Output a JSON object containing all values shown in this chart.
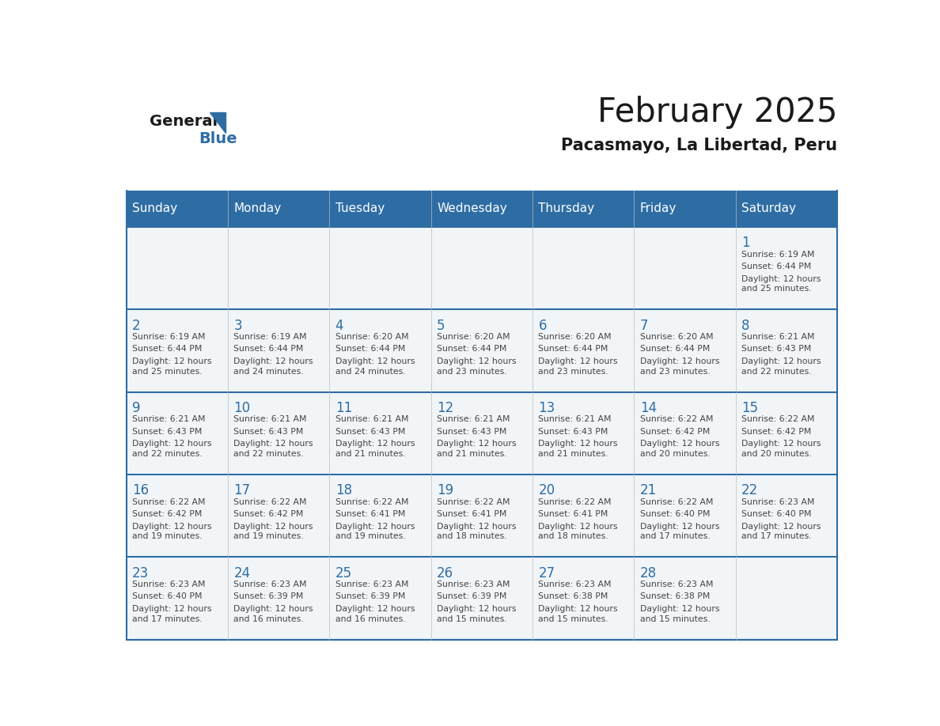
{
  "title": "February 2025",
  "subtitle": "Pacasmayo, La Libertad, Peru",
  "header_bg": "#2E6DA4",
  "header_text": "#FFFFFF",
  "row_line_color": "#2E6DA4",
  "text_color": "#444444",
  "day_number_color": "#2E6DA4",
  "days_of_week": [
    "Sunday",
    "Monday",
    "Tuesday",
    "Wednesday",
    "Thursday",
    "Friday",
    "Saturday"
  ],
  "logo_general_color": "#1a1a1a",
  "logo_blue_color": "#2E6DA4",
  "calendar_data": [
    [
      null,
      null,
      null,
      null,
      null,
      null,
      {
        "day": 1,
        "sunrise": "6:19 AM",
        "sunset": "6:44 PM",
        "daylight_suffix": "25 minutes."
      }
    ],
    [
      {
        "day": 2,
        "sunrise": "6:19 AM",
        "sunset": "6:44 PM",
        "daylight_suffix": "25 minutes."
      },
      {
        "day": 3,
        "sunrise": "6:19 AM",
        "sunset": "6:44 PM",
        "daylight_suffix": "24 minutes."
      },
      {
        "day": 4,
        "sunrise": "6:20 AM",
        "sunset": "6:44 PM",
        "daylight_suffix": "24 minutes."
      },
      {
        "day": 5,
        "sunrise": "6:20 AM",
        "sunset": "6:44 PM",
        "daylight_suffix": "23 minutes."
      },
      {
        "day": 6,
        "sunrise": "6:20 AM",
        "sunset": "6:44 PM",
        "daylight_suffix": "23 minutes."
      },
      {
        "day": 7,
        "sunrise": "6:20 AM",
        "sunset": "6:44 PM",
        "daylight_suffix": "23 minutes."
      },
      {
        "day": 8,
        "sunrise": "6:21 AM",
        "sunset": "6:43 PM",
        "daylight_suffix": "22 minutes."
      }
    ],
    [
      {
        "day": 9,
        "sunrise": "6:21 AM",
        "sunset": "6:43 PM",
        "daylight_suffix": "22 minutes."
      },
      {
        "day": 10,
        "sunrise": "6:21 AM",
        "sunset": "6:43 PM",
        "daylight_suffix": "22 minutes."
      },
      {
        "day": 11,
        "sunrise": "6:21 AM",
        "sunset": "6:43 PM",
        "daylight_suffix": "21 minutes."
      },
      {
        "day": 12,
        "sunrise": "6:21 AM",
        "sunset": "6:43 PM",
        "daylight_suffix": "21 minutes."
      },
      {
        "day": 13,
        "sunrise": "6:21 AM",
        "sunset": "6:43 PM",
        "daylight_suffix": "21 minutes."
      },
      {
        "day": 14,
        "sunrise": "6:22 AM",
        "sunset": "6:42 PM",
        "daylight_suffix": "20 minutes."
      },
      {
        "day": 15,
        "sunrise": "6:22 AM",
        "sunset": "6:42 PM",
        "daylight_suffix": "20 minutes."
      }
    ],
    [
      {
        "day": 16,
        "sunrise": "6:22 AM",
        "sunset": "6:42 PM",
        "daylight_suffix": "19 minutes."
      },
      {
        "day": 17,
        "sunrise": "6:22 AM",
        "sunset": "6:42 PM",
        "daylight_suffix": "19 minutes."
      },
      {
        "day": 18,
        "sunrise": "6:22 AM",
        "sunset": "6:41 PM",
        "daylight_suffix": "19 minutes."
      },
      {
        "day": 19,
        "sunrise": "6:22 AM",
        "sunset": "6:41 PM",
        "daylight_suffix": "18 minutes."
      },
      {
        "day": 20,
        "sunrise": "6:22 AM",
        "sunset": "6:41 PM",
        "daylight_suffix": "18 minutes."
      },
      {
        "day": 21,
        "sunrise": "6:22 AM",
        "sunset": "6:40 PM",
        "daylight_suffix": "17 minutes."
      },
      {
        "day": 22,
        "sunrise": "6:23 AM",
        "sunset": "6:40 PM",
        "daylight_suffix": "17 minutes."
      }
    ],
    [
      {
        "day": 23,
        "sunrise": "6:23 AM",
        "sunset": "6:40 PM",
        "daylight_suffix": "17 minutes."
      },
      {
        "day": 24,
        "sunrise": "6:23 AM",
        "sunset": "6:39 PM",
        "daylight_suffix": "16 minutes."
      },
      {
        "day": 25,
        "sunrise": "6:23 AM",
        "sunset": "6:39 PM",
        "daylight_suffix": "16 minutes."
      },
      {
        "day": 26,
        "sunrise": "6:23 AM",
        "sunset": "6:39 PM",
        "daylight_suffix": "15 minutes."
      },
      {
        "day": 27,
        "sunrise": "6:23 AM",
        "sunset": "6:38 PM",
        "daylight_suffix": "15 minutes."
      },
      {
        "day": 28,
        "sunrise": "6:23 AM",
        "sunset": "6:38 PM",
        "daylight_suffix": "15 minutes."
      },
      null
    ]
  ]
}
